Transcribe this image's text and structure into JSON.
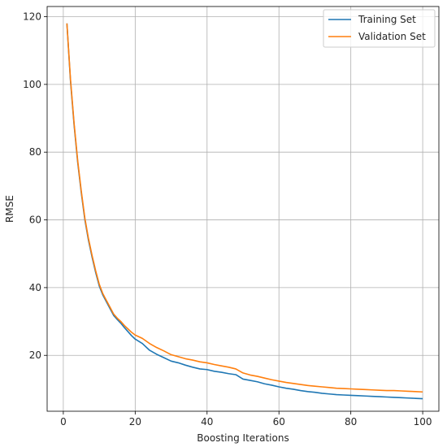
{
  "chart_data": {
    "type": "line",
    "title": "",
    "xlabel": "Boosting Iterations",
    "ylabel": "RMSE",
    "xlim": [
      -4.5,
      104.5
    ],
    "ylim": [
      3.5,
      123
    ],
    "xticks": [
      0,
      20,
      40,
      60,
      80,
      100
    ],
    "yticks": [
      20,
      40,
      60,
      80,
      100,
      120
    ],
    "grid": true,
    "legend_position": "top-right",
    "series": [
      {
        "name": "Training Set",
        "color": "#1f77b4",
        "x": [
          1,
          2,
          3,
          4,
          5,
          6,
          7,
          8,
          9,
          10,
          11,
          12,
          13,
          14,
          15,
          16,
          17,
          18,
          19,
          20,
          22,
          24,
          26,
          28,
          30,
          32,
          34,
          36,
          38,
          40,
          42,
          44,
          46,
          48,
          50,
          52,
          54,
          56,
          58,
          60,
          62,
          64,
          66,
          68,
          70,
          72,
          74,
          76,
          78,
          80,
          82,
          84,
          86,
          88,
          90,
          92,
          94,
          96,
          98,
          100
        ],
        "y": [
          118,
          101,
          88,
          77,
          68,
          60,
          54,
          49,
          44.5,
          40.5,
          37.8,
          35.8,
          33.8,
          31.8,
          30.6,
          29.5,
          28.2,
          27,
          25.8,
          24.8,
          23.5,
          21.5,
          20.3,
          19.3,
          18.3,
          17.8,
          17.1,
          16.5,
          16,
          15.8,
          15.3,
          15,
          14.6,
          14.3,
          13,
          12.6,
          12.2,
          11.6,
          11.2,
          10.7,
          10.3,
          10,
          9.6,
          9.3,
          9.1,
          8.8,
          8.6,
          8.4,
          8.3,
          8.2,
          8.1,
          8,
          7.9,
          7.8,
          7.7,
          7.6,
          7.5,
          7.4,
          7.3,
          7.2
        ]
      },
      {
        "name": "Validation Set",
        "color": "#ff7f0e",
        "x": [
          1,
          2,
          3,
          4,
          5,
          6,
          7,
          8,
          9,
          10,
          11,
          12,
          13,
          14,
          15,
          16,
          17,
          18,
          19,
          20,
          22,
          24,
          26,
          28,
          30,
          32,
          34,
          36,
          38,
          40,
          42,
          44,
          46,
          48,
          50,
          52,
          54,
          56,
          58,
          60,
          62,
          64,
          66,
          68,
          70,
          72,
          74,
          76,
          78,
          80,
          82,
          84,
          86,
          88,
          90,
          92,
          94,
          96,
          98,
          100
        ],
        "y": [
          118,
          101.5,
          88.5,
          77.5,
          68.5,
          60.5,
          54.5,
          49.5,
          45,
          41,
          38.2,
          36.2,
          34.2,
          32.2,
          31,
          30,
          28.8,
          27.8,
          26.8,
          26,
          25,
          23.5,
          22.3,
          21.3,
          20.2,
          19.6,
          19,
          18.6,
          18.1,
          17.8,
          17.3,
          16.9,
          16.5,
          16,
          14.8,
          14.2,
          13.8,
          13.3,
          12.8,
          12.4,
          12,
          11.7,
          11.4,
          11.1,
          10.9,
          10.7,
          10.5,
          10.3,
          10.2,
          10.1,
          10,
          9.9,
          9.8,
          9.7,
          9.6,
          9.6,
          9.5,
          9.4,
          9.3,
          9.2
        ]
      }
    ]
  }
}
